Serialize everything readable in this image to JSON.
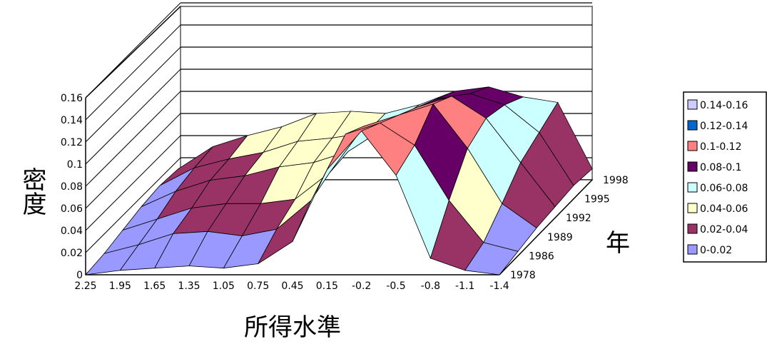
{
  "chart_data": {
    "type": "surface",
    "title": "",
    "xlabel": "所得水準",
    "ylabel": "年",
    "zlabel": "密度",
    "x_ticks": [
      "2.25",
      "1.95",
      "1.65",
      "1.35",
      "1.05",
      "0.75",
      "0.45",
      "0.15",
      "-0.2",
      "-0.5",
      "-0.8",
      "-1.1",
      "-1.4"
    ],
    "y_ticks": [
      "1978",
      "1986",
      "1989",
      "1992",
      "1995",
      "1998"
    ],
    "z_ticks": [
      "0",
      "0.02",
      "0.04",
      "0.06",
      "0.08",
      "0.1",
      "0.12",
      "0.14",
      "0.16"
    ],
    "zlim": [
      0,
      0.16
    ],
    "grid": true,
    "legend_position": "right",
    "legend": [
      {
        "label": "0.14-0.16",
        "color": "#ccccff"
      },
      {
        "label": "0.12-0.14",
        "color": "#0066cc"
      },
      {
        "label": "0.1-0.12",
        "color": "#ff8080"
      },
      {
        "label": "0.08-0.1",
        "color": "#660066"
      },
      {
        "label": "0.06-0.08",
        "color": "#ccffff"
      },
      {
        "label": "0.04-0.06",
        "color": "#ffffcc"
      },
      {
        "label": "0.02-0.04",
        "color": "#993366"
      },
      {
        "label": "0-0.02",
        "color": "#9999ff"
      }
    ],
    "x_values": [
      2.25,
      1.95,
      1.65,
      1.35,
      1.05,
      0.75,
      0.45,
      0.15,
      -0.2,
      -0.5,
      -0.8,
      -1.1,
      -1.4
    ],
    "series": [
      {
        "name": "1978",
        "values": [
          0.0,
          0.004,
          0.006,
          0.008,
          0.006,
          0.01,
          0.03,
          0.095,
          0.13,
          0.09,
          0.015,
          0.004,
          0.0
        ]
      },
      {
        "name": "1986",
        "values": [
          0.002,
          0.01,
          0.02,
          0.022,
          0.018,
          0.024,
          0.05,
          0.11,
          0.12,
          0.1,
          0.05,
          0.012,
          0.004
        ]
      },
      {
        "name": "1989",
        "values": [
          0.006,
          0.016,
          0.026,
          0.03,
          0.03,
          0.034,
          0.058,
          0.1,
          0.11,
          0.12,
          0.08,
          0.03,
          0.008
        ]
      },
      {
        "name": "1992",
        "values": [
          0.01,
          0.024,
          0.034,
          0.038,
          0.046,
          0.05,
          0.06,
          0.08,
          0.1,
          0.11,
          0.09,
          0.05,
          0.01
        ]
      },
      {
        "name": "1995",
        "values": [
          0.012,
          0.028,
          0.036,
          0.042,
          0.052,
          0.055,
          0.06,
          0.074,
          0.09,
          0.095,
          0.085,
          0.06,
          0.012
        ]
      },
      {
        "name": "1998",
        "values": [
          0.01,
          0.03,
          0.04,
          0.048,
          0.06,
          0.062,
          0.06,
          0.068,
          0.08,
          0.084,
          0.075,
          0.07,
          0.01
        ]
      }
    ]
  }
}
